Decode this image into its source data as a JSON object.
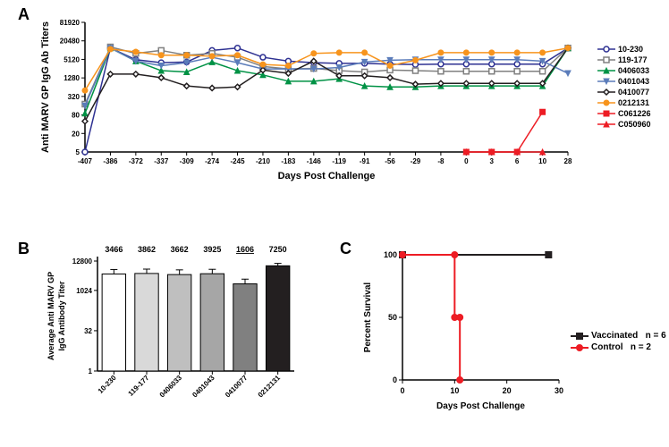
{
  "panelA": {
    "label": "A",
    "ylabel": "Anti MARV GP IgG Ab Titers",
    "xlabel": "Days Post Challenge",
    "yticks": [
      5,
      20,
      80,
      320,
      1280,
      5120,
      20480,
      81920
    ],
    "xticks": [
      -407,
      -386,
      -372,
      -337,
      -309,
      -274,
      -245,
      -210,
      -183,
      -146,
      -119,
      -91,
      -56,
      -29,
      -8,
      0,
      3,
      6,
      10,
      28
    ],
    "series": [
      {
        "name": "10-230",
        "color": "#2e3192",
        "marker": "circle-open",
        "data": [
          0,
          12000,
          5000,
          4000,
          4200,
          10000,
          12000,
          6000,
          4500,
          4000,
          3800,
          3800,
          3600,
          3500,
          3600,
          3600,
          3600,
          3600,
          3600,
          12000
        ]
      },
      {
        "name": "119-177",
        "color": "#808080",
        "marker": "square-open",
        "data": [
          180,
          13000,
          8000,
          10000,
          7000,
          8000,
          6000,
          3000,
          2500,
          2600,
          2200,
          2000,
          2300,
          2200,
          2100,
          2100,
          2100,
          2100,
          2100,
          12000
        ]
      },
      {
        "name": "0406033",
        "color": "#009245",
        "marker": "triangle-up",
        "data": [
          90,
          12000,
          4500,
          2200,
          2000,
          4200,
          2200,
          1600,
          1000,
          1000,
          1200,
          700,
          650,
          650,
          700,
          700,
          700,
          700,
          700,
          12000
        ]
      },
      {
        "name": "0401043",
        "color": "#5b7cba",
        "marker": "triangle-down",
        "data": [
          160,
          12000,
          4500,
          3200,
          4000,
          6000,
          4000,
          2500,
          2500,
          2500,
          2800,
          4200,
          4800,
          5000,
          5000,
          5000,
          5000,
          5000,
          4500,
          1800
        ]
      },
      {
        "name": "0410077",
        "color": "#231f20",
        "marker": "diamond-open",
        "data": [
          50,
          1700,
          1700,
          1300,
          700,
          600,
          650,
          2300,
          1800,
          4500,
          1500,
          1500,
          1300,
          800,
          850,
          850,
          850,
          850,
          850,
          12000
        ]
      },
      {
        "name": "0212131",
        "color": "#f7941d",
        "marker": "circle",
        "data": [
          500,
          11000,
          9000,
          7000,
          7000,
          6500,
          7000,
          3500,
          3200,
          8000,
          8500,
          8500,
          3200,
          4800,
          8500,
          8500,
          8500,
          8500,
          8500,
          12000
        ]
      },
      {
        "name": "C061226",
        "color": "#ed1c24",
        "marker": "square",
        "data": [
          null,
          null,
          null,
          null,
          null,
          null,
          null,
          null,
          null,
          null,
          null,
          null,
          null,
          null,
          null,
          0,
          0,
          0,
          100,
          null
        ]
      },
      {
        "name": "C050960",
        "color": "#ed1c24",
        "marker": "triangle-up",
        "data": [
          null,
          null,
          null,
          null,
          null,
          null,
          null,
          null,
          null,
          null,
          null,
          null,
          null,
          null,
          null,
          0,
          0,
          0,
          0,
          null
        ]
      }
    ],
    "axis_fontsize": 11,
    "tick_fontsize": 8
  },
  "panelB": {
    "label": "B",
    "ylabel": "Average Anti MARV GP IgG Antibody Titer",
    "yticks": [
      1,
      32,
      1024,
      12800
    ],
    "bars": [
      {
        "label": "10-230",
        "value": 4200,
        "top": 3466,
        "fill": "#ffffff",
        "err": 2000
      },
      {
        "label": "119-177",
        "value": 4400,
        "top": 3862,
        "fill": "#d9d9d9",
        "err": 2000
      },
      {
        "label": "0406033",
        "value": 4000,
        "top": 3662,
        "fill": "#bfbfbf",
        "err": 2000
      },
      {
        "label": "0401043",
        "value": 4300,
        "top": 3925,
        "fill": "#a6a6a6",
        "err": 2000
      },
      {
        "label": "0410077",
        "value": 1800,
        "top": 1606,
        "fill": "#808080",
        "err": 900,
        "underline": true
      },
      {
        "label": "0212131",
        "value": 8500,
        "top": 7250,
        "fill": "#231f20",
        "err": 2000
      }
    ],
    "axis_fontsize": 9,
    "tick_fontsize": 8
  },
  "panelC": {
    "label": "C",
    "ylabel": "Percent Survival",
    "xlabel": "Days Post Challenge",
    "yticks": [
      0,
      50,
      100
    ],
    "xticks": [
      0,
      10,
      20,
      30
    ],
    "legend": [
      {
        "name": "Vaccinated",
        "n": "n = 6",
        "color": "#231f20",
        "marker": "square"
      },
      {
        "name": "Control",
        "n": "n = 2",
        "color": "#ed1c24",
        "marker": "circle"
      }
    ],
    "vaccinated": [
      [
        0,
        100
      ],
      [
        28,
        100
      ]
    ],
    "control": [
      [
        0,
        100
      ],
      [
        10,
        100
      ],
      [
        10,
        50
      ],
      [
        11,
        50
      ],
      [
        11,
        0
      ]
    ],
    "axis_fontsize": 10,
    "tick_fontsize": 9
  }
}
